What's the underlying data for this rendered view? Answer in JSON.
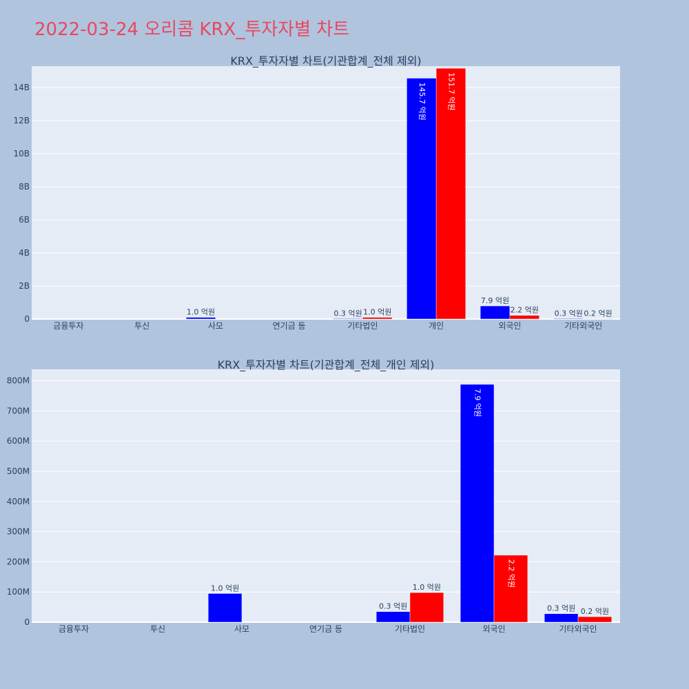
{
  "page": {
    "title": "2022-03-24 오리콤 KRX_투자자별 차트"
  },
  "colors": {
    "background": "#b0c4de",
    "plot_background": "#e5ecf6",
    "title": "#e8485f",
    "series_a": "#0000ff",
    "series_b": "#ff0000"
  },
  "chart_data": [
    {
      "type": "bar",
      "title": "KRX_투자자별 차트(기관합계_전체 제외)",
      "categories": [
        "금융투자",
        "투신",
        "사모",
        "연기금 등",
        "기타법인",
        "개인",
        "외국인",
        "기타외국인"
      ],
      "y_unit_scale": 1000000000.0,
      "y_ticks": [
        0,
        2,
        4,
        6,
        8,
        10,
        12,
        14
      ],
      "y_tick_labels": [
        "0",
        "2B",
        "4B",
        "6B",
        "8B",
        "10B",
        "12B",
        "14B"
      ],
      "ylim": [
        0,
        15.3
      ],
      "grid": true,
      "series": [
        {
          "color": "#0000ff",
          "values": [
            0,
            0,
            0.1,
            0,
            0.03,
            14.57,
            0.79,
            0.03
          ],
          "labels": [
            "",
            "",
            "1.0 억원",
            "",
            "0.3 억원",
            "145.7 억원",
            "7.9 억원",
            "0.3 억원"
          ]
        },
        {
          "color": "#ff0000",
          "values": [
            0,
            0,
            0,
            0,
            0.1,
            15.17,
            0.22,
            0.02
          ],
          "labels": [
            "",
            "",
            "",
            "",
            "1.0 억원",
            "151.7 억원",
            "2.2 억원",
            "0.2 억원"
          ]
        }
      ]
    },
    {
      "type": "bar",
      "title": "KRX_투자자별 차트(기관합계_전체_개인 제외)",
      "categories": [
        "금융투자",
        "투신",
        "사모",
        "연기금 등",
        "기타법인",
        "외국인",
        "기타외국인"
      ],
      "y_unit_scale": 1000000.0,
      "y_ticks": [
        0,
        100,
        200,
        300,
        400,
        500,
        600,
        700,
        800
      ],
      "y_tick_labels": [
        "0",
        "100M",
        "200M",
        "300M",
        "400M",
        "500M",
        "600M",
        "700M",
        "800M"
      ],
      "ylim": [
        0,
        838
      ],
      "grid": true,
      "series": [
        {
          "color": "#0000ff",
          "values": [
            0,
            0,
            95,
            0,
            35,
            788,
            28
          ],
          "labels": [
            "",
            "",
            "1.0 억원",
            "",
            "0.3 억원",
            "7.9 억원",
            "0.3 억원"
          ]
        },
        {
          "color": "#ff0000",
          "values": [
            0,
            0,
            0,
            0,
            98,
            222,
            18
          ],
          "labels": [
            "",
            "",
            "",
            "",
            "1.0 억원",
            "2.2 억원",
            "0.2 억원"
          ]
        }
      ]
    }
  ]
}
